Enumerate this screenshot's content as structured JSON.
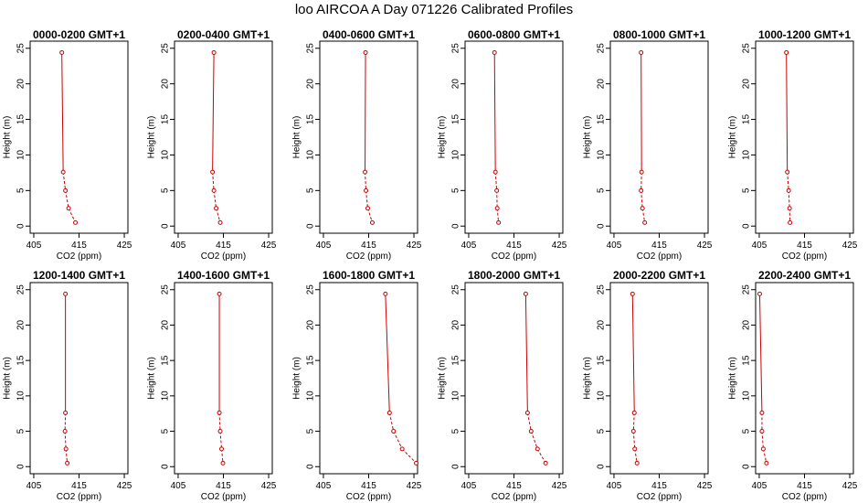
{
  "title": "loo AIRCOA A  Day 071226  Calibrated Profiles",
  "chart_data": {
    "type": "line",
    "xlabel": "CO2 (ppm)",
    "ylabel": "Height (m)",
    "xlim": [
      405,
      425
    ],
    "ylim": [
      0,
      25
    ],
    "xticks": [
      405,
      415,
      425
    ],
    "yticks": [
      0,
      5,
      10,
      15,
      20,
      25
    ],
    "line_color": "#cc0000",
    "panels": [
      {
        "title": "0000-0200 GMT+1",
        "points": [
          [
            411.2,
            24.4
          ],
          [
            411.5,
            7.6
          ],
          [
            412.0,
            5.0
          ],
          [
            412.7,
            2.5
          ],
          [
            414.2,
            0.5
          ]
        ]
      },
      {
        "title": "0200-0400 GMT+1",
        "points": [
          [
            412.9,
            24.4
          ],
          [
            412.6,
            7.6
          ],
          [
            412.9,
            5.0
          ],
          [
            413.4,
            2.5
          ],
          [
            414.3,
            0.5
          ]
        ]
      },
      {
        "title": "0400-0600 GMT+1",
        "points": [
          [
            414.3,
            24.4
          ],
          [
            414.2,
            7.6
          ],
          [
            414.4,
            5.0
          ],
          [
            414.8,
            2.5
          ],
          [
            415.8,
            0.5
          ]
        ]
      },
      {
        "title": "0600-0800 GMT+1",
        "points": [
          [
            410.7,
            24.4
          ],
          [
            410.9,
            7.6
          ],
          [
            411.2,
            5.0
          ],
          [
            411.3,
            2.5
          ],
          [
            411.6,
            0.5
          ]
        ]
      },
      {
        "title": "0800-1000 GMT+1",
        "points": [
          [
            411.0,
            24.4
          ],
          [
            411.1,
            7.6
          ],
          [
            411.0,
            5.0
          ],
          [
            411.3,
            2.5
          ],
          [
            411.8,
            0.5
          ]
        ]
      },
      {
        "title": "1000-1200 GMT+1",
        "points": [
          [
            411.0,
            24.4
          ],
          [
            411.2,
            7.6
          ],
          [
            411.5,
            5.0
          ],
          [
            411.7,
            2.5
          ],
          [
            411.8,
            0.5
          ]
        ]
      },
      {
        "title": "1200-1400 GMT+1",
        "points": [
          [
            412.0,
            24.4
          ],
          [
            412.0,
            7.6
          ],
          [
            411.9,
            5.0
          ],
          [
            412.1,
            2.5
          ],
          [
            412.4,
            0.5
          ]
        ]
      },
      {
        "title": "1400-1600 GMT+1",
        "points": [
          [
            414.1,
            24.4
          ],
          [
            414.1,
            7.6
          ],
          [
            414.3,
            5.0
          ],
          [
            414.6,
            2.5
          ],
          [
            414.9,
            0.5
          ]
        ]
      },
      {
        "title": "1600-1800 GMT+1",
        "points": [
          [
            418.7,
            24.4
          ],
          [
            419.6,
            7.6
          ],
          [
            420.5,
            5.0
          ],
          [
            422.4,
            2.5
          ],
          [
            425.5,
            0.5
          ]
        ]
      },
      {
        "title": "1800-2000 GMT+1",
        "points": [
          [
            417.6,
            24.4
          ],
          [
            418.0,
            7.6
          ],
          [
            418.8,
            5.0
          ],
          [
            420.2,
            2.5
          ],
          [
            422.0,
            0.5
          ]
        ]
      },
      {
        "title": "2000-2200 GMT+1",
        "points": [
          [
            409.1,
            24.4
          ],
          [
            409.5,
            7.6
          ],
          [
            409.3,
            5.0
          ],
          [
            409.6,
            2.5
          ],
          [
            410.1,
            0.5
          ]
        ]
      },
      {
        "title": "2200-2400 GMT+1",
        "points": [
          [
            405.1,
            24.4
          ],
          [
            405.6,
            7.6
          ],
          [
            405.6,
            5.0
          ],
          [
            405.9,
            2.5
          ],
          [
            406.6,
            0.5
          ]
        ]
      }
    ]
  }
}
